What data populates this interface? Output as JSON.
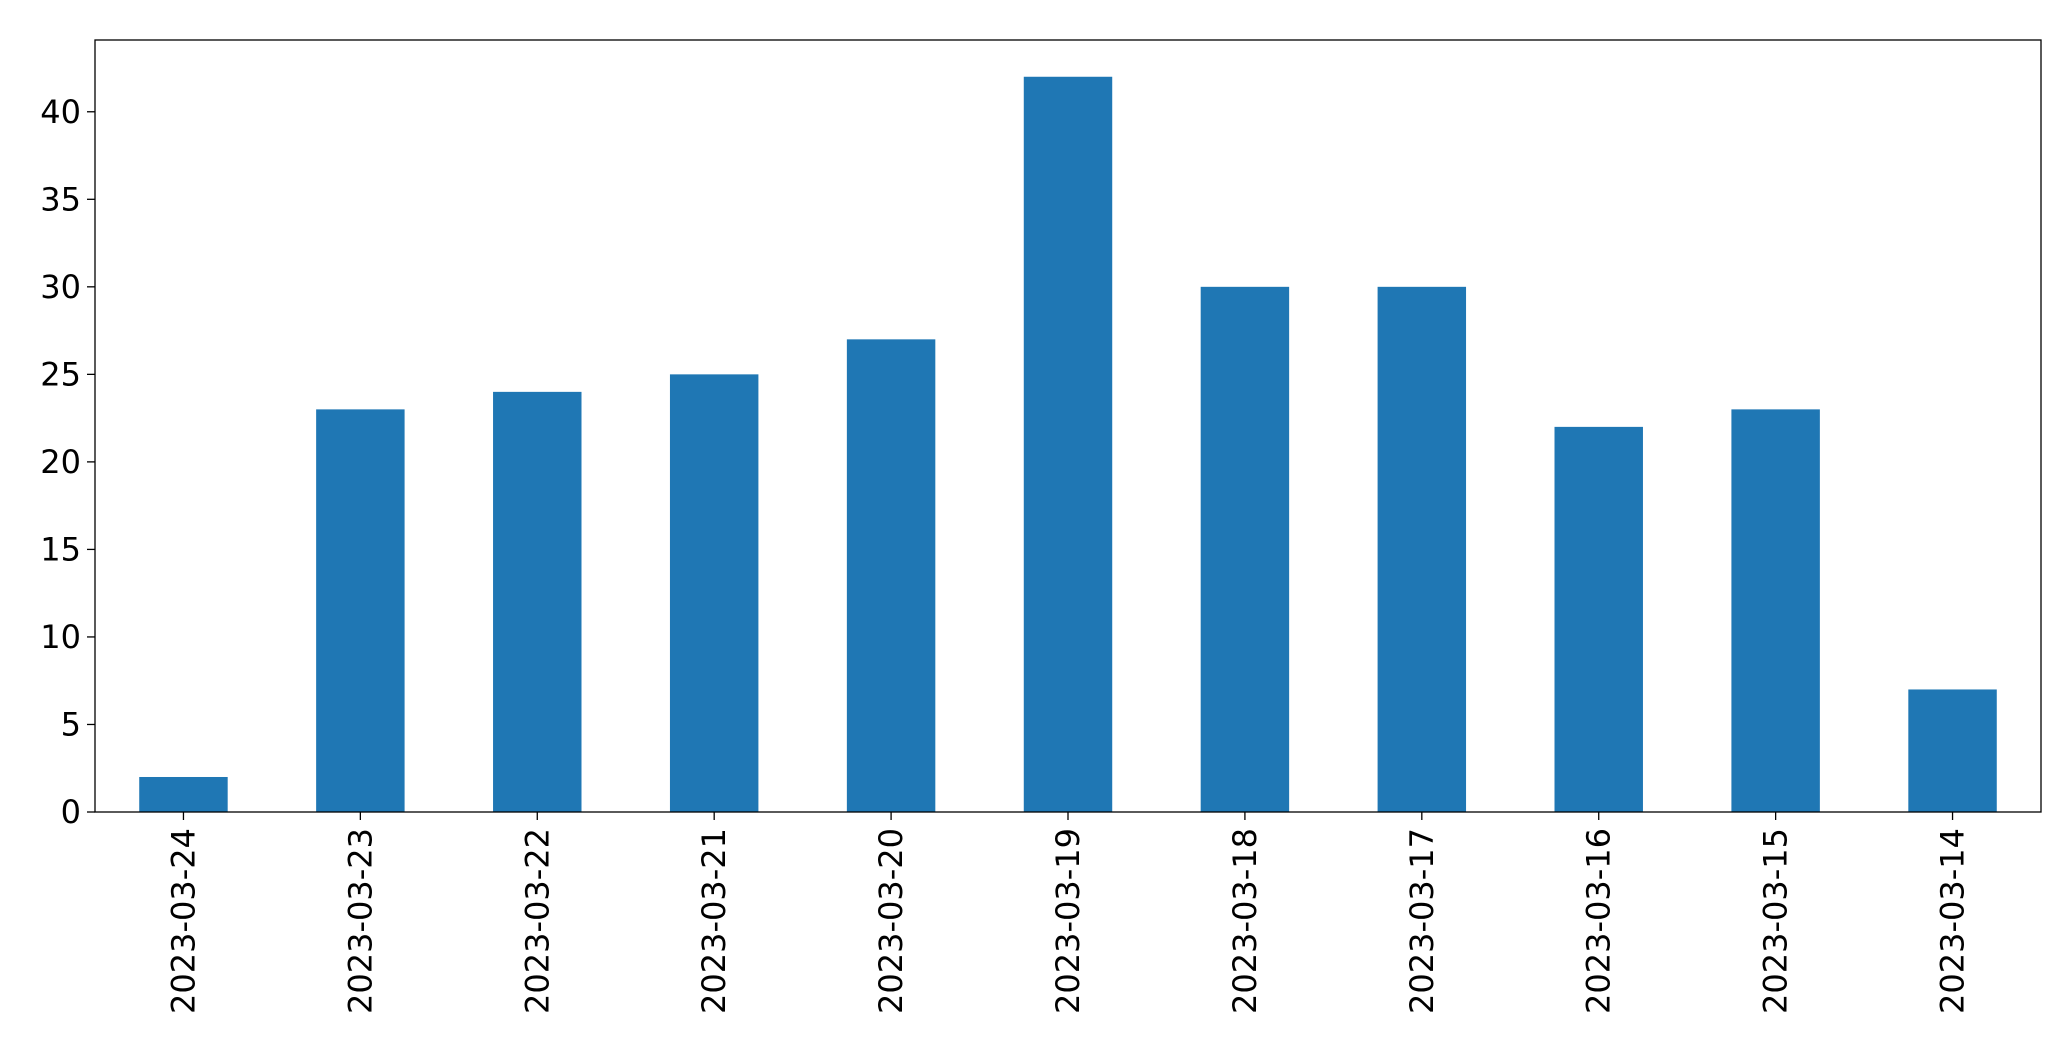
{
  "chart_data": {
    "type": "bar",
    "title": "",
    "xlabel": "",
    "ylabel": "",
    "categories": [
      "2023-03-24",
      "2023-03-23",
      "2023-03-22",
      "2023-03-21",
      "2023-03-20",
      "2023-03-19",
      "2023-03-18",
      "2023-03-17",
      "2023-03-16",
      "2023-03-15",
      "2023-03-14"
    ],
    "values": [
      2,
      23,
      24,
      25,
      27,
      42,
      30,
      30,
      22,
      23,
      7
    ],
    "ylim": [
      0,
      44.1
    ],
    "yticks": [
      0,
      5,
      10,
      15,
      20,
      25,
      30,
      35,
      40
    ],
    "ytick_labels": [
      "0",
      "5",
      "10",
      "15",
      "20",
      "25",
      "30",
      "35",
      "40"
    ],
    "bar_color": "#1f77b4",
    "grid": false,
    "legend": "none"
  }
}
